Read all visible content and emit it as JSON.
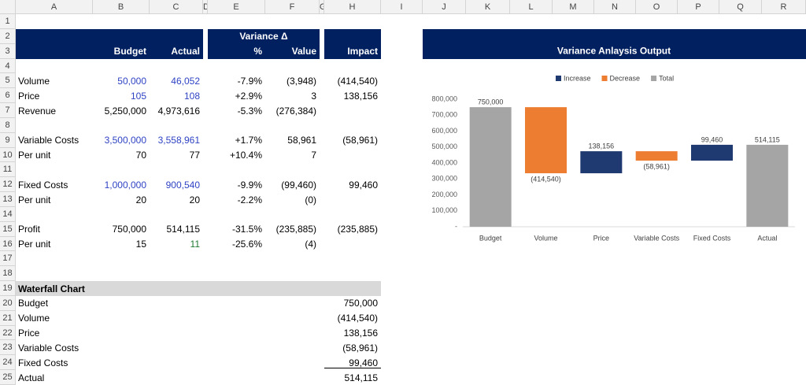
{
  "sheet": {
    "column_letters": [
      "A",
      "B",
      "C",
      "D",
      "E",
      "F",
      "G",
      "H",
      "I",
      "J",
      "K",
      "L",
      "M",
      "N",
      "O",
      "P",
      "Q",
      "R"
    ],
    "row_numbers": [
      "1",
      "2",
      "3",
      "4",
      "5",
      "6",
      "7",
      "8",
      "9",
      "10",
      "11",
      "12",
      "13",
      "14",
      "15",
      "16",
      "17",
      "18",
      "19",
      "20",
      "21",
      "22",
      "23",
      "24",
      "25"
    ],
    "cells": {
      "2": {
        "E": "Variance Δ"
      },
      "3": {
        "B": "Budget",
        "C": "Actual",
        "E": "%",
        "F": "Value",
        "H": "Impact"
      },
      "5": {
        "A": "Volume",
        "B": "50,000",
        "C": "46,052",
        "E": "-7.9%",
        "F": "(3,948)",
        "H": "(414,540)"
      },
      "6": {
        "A": "Price",
        "B": "105",
        "C": "108",
        "E": "+2.9%",
        "F": "3",
        "H": "138,156"
      },
      "7": {
        "A": "Revenue",
        "B": "5,250,000",
        "C": "4,973,616",
        "E": "-5.3%",
        "F": "(276,384)"
      },
      "9": {
        "A": "Variable Costs",
        "B": "3,500,000",
        "C": "3,558,961",
        "E": "+1.7%",
        "F": "58,961",
        "H": "(58,961)"
      },
      "10": {
        "A": "Per unit",
        "B": "70",
        "C": "77",
        "E": "+10.4%",
        "F": "7"
      },
      "12": {
        "A": "Fixed Costs",
        "B": "1,000,000",
        "C": "900,540",
        "E": "-9.9%",
        "F": "(99,460)",
        "H": "99,460"
      },
      "13": {
        "A": "Per unit",
        "B": "20",
        "C": "20",
        "E": "-2.2%",
        "F": "(0)"
      },
      "15": {
        "A": "Profit",
        "B": "750,000",
        "C": "514,115",
        "E": "-31.5%",
        "F": "(235,885)",
        "H": "(235,885)"
      },
      "16": {
        "A": "Per unit",
        "B": "15",
        "C": "11",
        "E": "-25.6%",
        "F": "(4)"
      },
      "19": {
        "A": "Waterfall Chart"
      },
      "20": {
        "A": "Budget",
        "H": "750,000"
      },
      "21": {
        "A": "Volume",
        "H": "(414,540)"
      },
      "22": {
        "A": "Price",
        "H": "138,156"
      },
      "23": {
        "A": "Variable Costs",
        "H": "(58,961)"
      },
      "24": {
        "A": "Fixed Costs",
        "H": "99,460"
      },
      "25": {
        "A": "Actual",
        "H": "514,115"
      }
    }
  },
  "chart_data": {
    "type": "waterfall",
    "title": "Variance Anlaysis Output",
    "categories": [
      "Budget",
      "Volume",
      "Price",
      "Variable Costs",
      "Fixed Costs",
      "Actual"
    ],
    "values": [
      750000,
      -414540,
      138156,
      -58961,
      99460,
      514115
    ],
    "value_labels": [
      "750,000",
      "(414,540)",
      "138,156",
      "(58,961)",
      "99,460",
      "514,115"
    ],
    "is_total": [
      true,
      false,
      false,
      false,
      false,
      true
    ],
    "legend": [
      {
        "name": "Increase",
        "color": "#1f3a70"
      },
      {
        "name": "Decrease",
        "color": "#ed7d31"
      },
      {
        "name": "Total",
        "color": "#a5a5a5"
      }
    ],
    "ylim": [
      0,
      800000
    ],
    "yticks": [
      {
        "value": 0,
        "label": "-"
      },
      {
        "value": 100000,
        "label": "100,000"
      },
      {
        "value": 200000,
        "label": "200,000"
      },
      {
        "value": 300000,
        "label": "300,000"
      },
      {
        "value": 400000,
        "label": "400,000"
      },
      {
        "value": 500000,
        "label": "500,000"
      },
      {
        "value": 600000,
        "label": "600,000"
      },
      {
        "value": 700000,
        "label": "700,000"
      },
      {
        "value": 800000,
        "label": "800,000"
      }
    ],
    "grid": false
  }
}
